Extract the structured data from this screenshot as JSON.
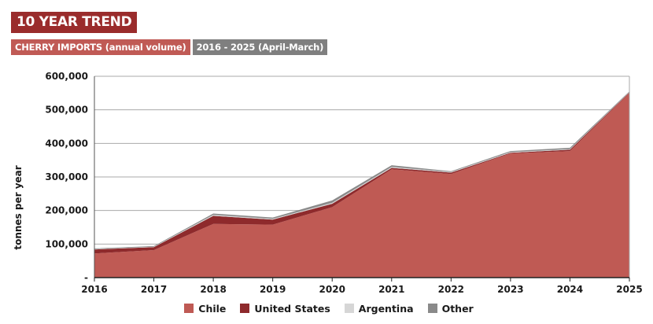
{
  "header": {
    "title": "10 YEAR TREND",
    "subtitle": "CHERRY IMPORTS (annual volume)",
    "period": "2016 - 2025 (April-March)"
  },
  "chart_data": {
    "type": "area",
    "stacked": true,
    "x": [
      "2016",
      "2017",
      "2018",
      "2019",
      "2020",
      "2021",
      "2022",
      "2023",
      "2024",
      "2025"
    ],
    "ylabel": "tonnes per year",
    "xlabel": "",
    "ylim": [
      0,
      600000
    ],
    "yticks": [
      0,
      100000,
      200000,
      300000,
      400000,
      500000,
      600000
    ],
    "ytick_labels": [
      "-",
      "100,000",
      "200,000",
      "300,000",
      "400,000",
      "500,000",
      "600,000"
    ],
    "grid": true,
    "legend_position": "bottom",
    "series": [
      {
        "name": "Chile",
        "color": "#bf5a54",
        "values": [
          72000,
          82000,
          160000,
          158000,
          210000,
          323000,
          309000,
          370000,
          377000,
          550000
        ]
      },
      {
        "name": "United States",
        "color": "#8e2a2c",
        "values": [
          12000,
          9000,
          24000,
          15000,
          10000,
          4000,
          4000,
          2000,
          4000,
          2000
        ]
      },
      {
        "name": "Argentina",
        "color": "#d6d6d6",
        "values": [
          1000,
          1000,
          3000,
          2000,
          3000,
          3000,
          2000,
          2000,
          2000,
          1000
        ]
      },
      {
        "name": "Other",
        "color": "#8a8a8a",
        "values": [
          2000,
          2000,
          4000,
          4000,
          7000,
          5000,
          2000,
          3000,
          4000,
          2000
        ]
      }
    ]
  }
}
